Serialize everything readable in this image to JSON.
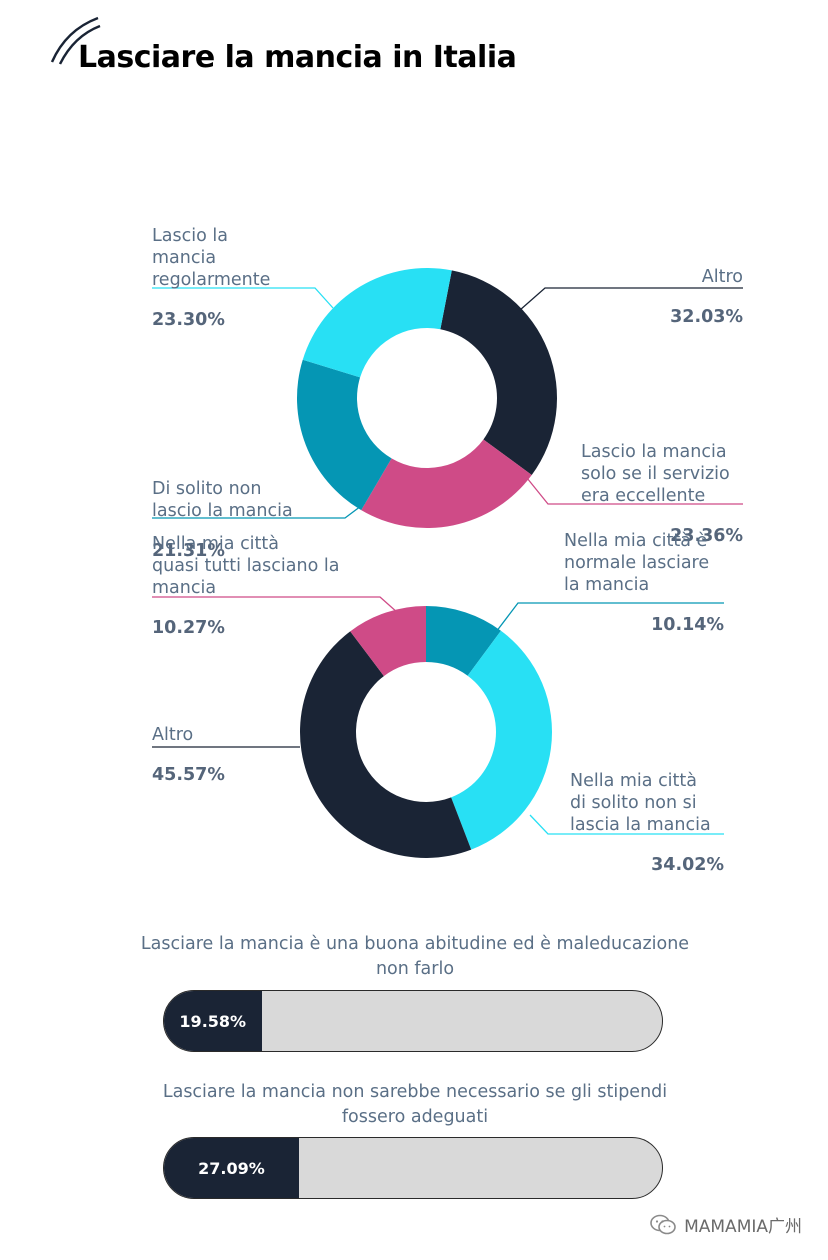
{
  "title": "Lasciare la mancia in Italia",
  "chart_data": [
    {
      "type": "pie",
      "series": [
        {
          "label_lines": [
            "Altro"
          ],
          "value": 32.03,
          "value_label": "32.03%",
          "color": "#1a2435"
        },
        {
          "label_lines": [
            "Lascio la mancia",
            "solo se il servizio",
            "era eccellente"
          ],
          "value": 23.36,
          "value_label": "23.36%",
          "color": "#cf4b87"
        },
        {
          "label_lines": [
            "Di solito non",
            "lascio la mancia"
          ],
          "value": 21.31,
          "value_label": "21.31%",
          "color": "#0596b4"
        },
        {
          "label_lines": [
            "Lascio la",
            "mancia",
            "regolarmente"
          ],
          "value": 23.3,
          "value_label": "23.30%",
          "color": "#28e0f4"
        }
      ]
    },
    {
      "type": "pie",
      "series": [
        {
          "label_lines": [
            "Nella mia città è",
            "normale lasciare",
            "la mancia"
          ],
          "value": 10.14,
          "value_label": "10.14%",
          "color": "#0596b4"
        },
        {
          "label_lines": [
            "Nella mia città",
            "di solito non si",
            "lascia la mancia"
          ],
          "value": 34.02,
          "value_label": "34.02%",
          "color": "#28e0f4"
        },
        {
          "label_lines": [
            "Altro"
          ],
          "value": 45.57,
          "value_label": "45.57%",
          "color": "#1a2435"
        },
        {
          "label_lines": [
            "Nella mia città",
            "quasi tutti lasciano la",
            "mancia"
          ],
          "value": 10.27,
          "value_label": "10.27%",
          "color": "#cf4b87"
        }
      ]
    }
  ],
  "bars": [
    {
      "caption": "Lasciare la mancia è una buona abitudine ed è maleducazione non farlo",
      "value": 19.58,
      "value_label": "19.58%"
    },
    {
      "caption": "Lasciare la mancia non sarebbe necessario se gli stipendi fossero adeguati",
      "value": 27.09,
      "value_label": "27.09%"
    }
  ],
  "watermark": {
    "text": "MAMAMIA广州",
    "icon": "wechat-icon"
  }
}
